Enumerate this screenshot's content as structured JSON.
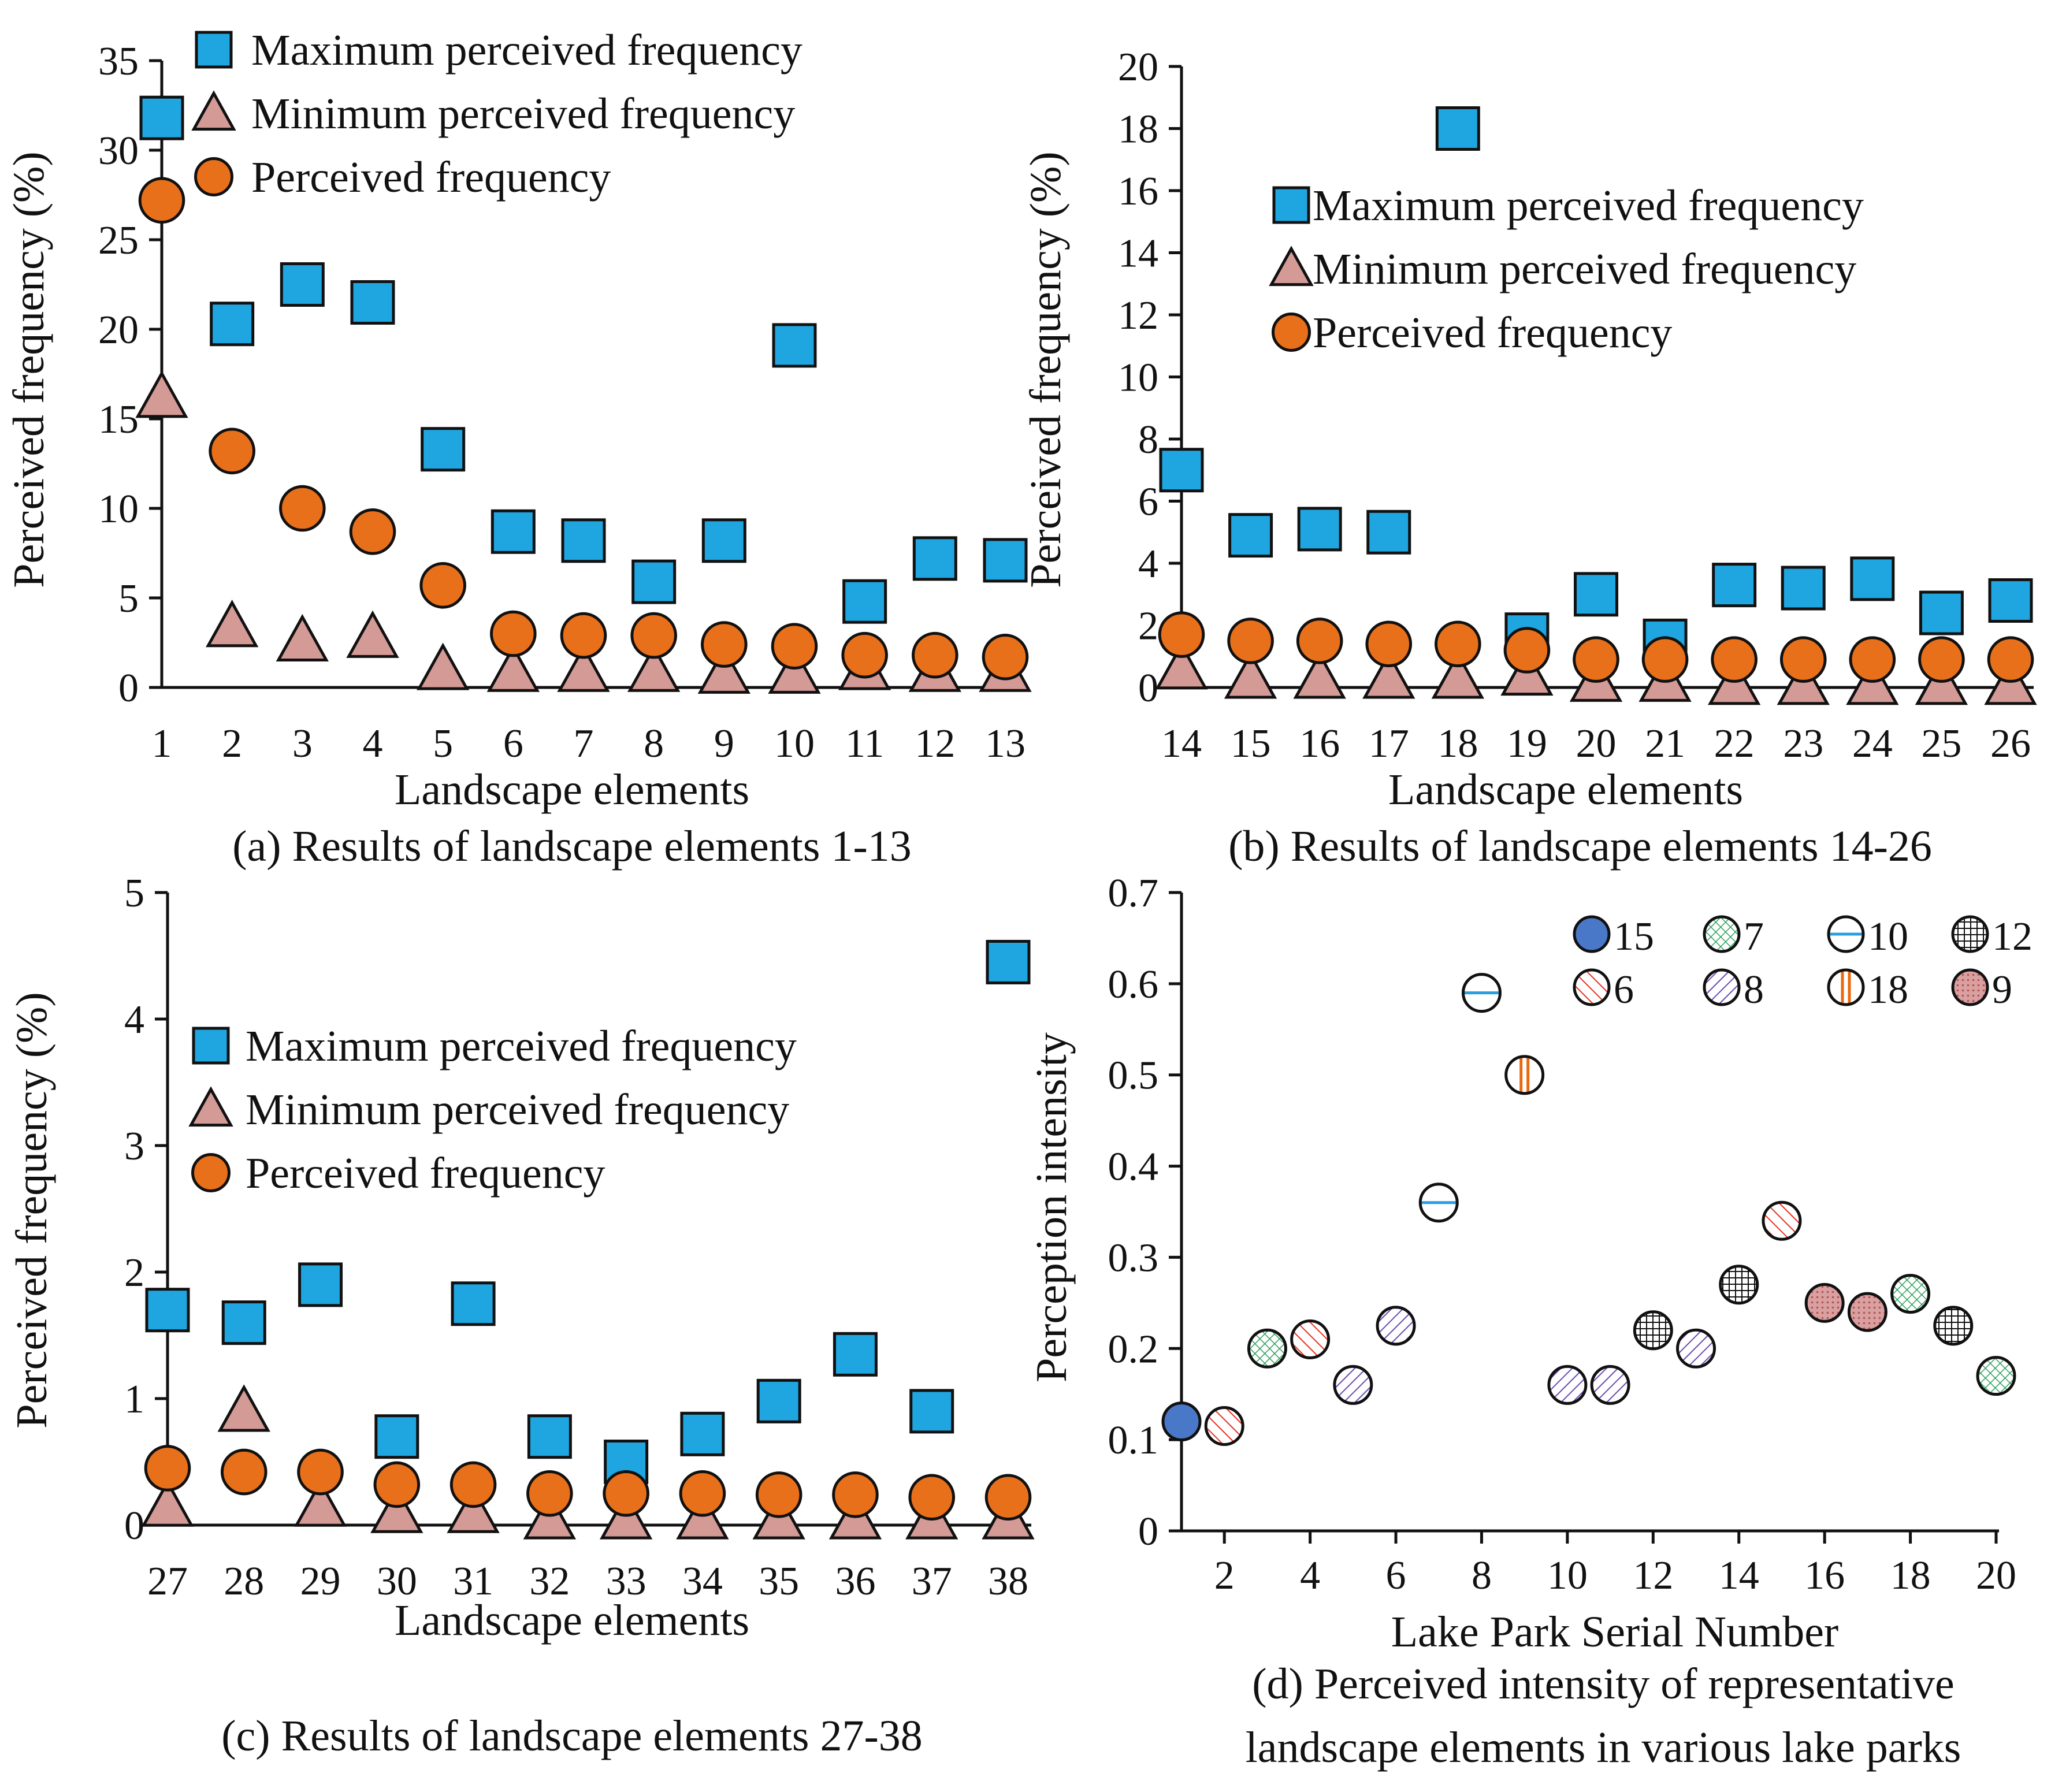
{
  "chart_data": [
    {
      "id": "a",
      "type": "scatter",
      "caption": "(a) Results of landscape elements 1-13",
      "xlabel": "Landscape elements",
      "ylabel": "Perceived frequency (%)",
      "ylim": [
        0,
        35
      ],
      "yticks": [
        0,
        5,
        10,
        15,
        20,
        25,
        30,
        35
      ],
      "categories": [
        "1",
        "2",
        "3",
        "4",
        "5",
        "6",
        "7",
        "8",
        "9",
        "10",
        "11",
        "12",
        "13"
      ],
      "legend": [
        "Maximum perceived frequency",
        "Minimum perceived frequency",
        "Perceived frequency"
      ],
      "legend_position": "top",
      "series": [
        {
          "name": "Maximum perceived frequency",
          "marker": "square",
          "values": [
            31.8,
            20.3,
            22.5,
            21.5,
            13.3,
            8.7,
            8.2,
            5.9,
            8.2,
            19.1,
            4.8,
            7.2,
            7.1
          ]
        },
        {
          "name": "Minimum perceived frequency",
          "marker": "triangle",
          "values": [
            16.2,
            3.4,
            2.6,
            2.8,
            1.0,
            0.9,
            0.9,
            0.9,
            0.8,
            0.8,
            1.0,
            0.9,
            0.9
          ]
        },
        {
          "name": "Perceived frequency",
          "marker": "circle",
          "values": [
            27.2,
            13.2,
            10.0,
            8.7,
            5.7,
            3.0,
            2.9,
            2.9,
            2.4,
            2.3,
            1.8,
            1.8,
            1.7
          ]
        }
      ]
    },
    {
      "id": "b",
      "type": "scatter",
      "caption": "(b) Results of landscape elements 14-26",
      "xlabel": "Landscape elements",
      "ylabel": "Perceived frequency (%)",
      "ylim": [
        0,
        20
      ],
      "yticks": [
        0,
        2,
        4,
        6,
        8,
        10,
        12,
        14,
        16,
        18,
        20
      ],
      "categories": [
        "14",
        "15",
        "16",
        "17",
        "18",
        "19",
        "20",
        "21",
        "22",
        "23",
        "24",
        "25",
        "26"
      ],
      "legend": [
        "Maximum perceived frequency",
        "Minimum perceived frequency",
        "Perceived frequency"
      ],
      "legend_position": "right",
      "series": [
        {
          "name": "Maximum perceived frequency",
          "marker": "square",
          "values": [
            7.0,
            4.9,
            5.1,
            5.0,
            18.0,
            1.7,
            3.0,
            1.5,
            3.3,
            3.2,
            3.5,
            2.4,
            2.8
          ]
        },
        {
          "name": "Minimum perceived frequency",
          "marker": "triangle",
          "values": [
            0.6,
            0.3,
            0.3,
            0.3,
            0.3,
            0.4,
            0.2,
            0.2,
            0.1,
            0.1,
            0.1,
            0.1,
            0.1
          ]
        },
        {
          "name": "Perceived frequency",
          "marker": "circle",
          "values": [
            1.7,
            1.5,
            1.5,
            1.4,
            1.4,
            1.2,
            0.9,
            0.9,
            0.9,
            0.9,
            0.9,
            0.9,
            0.9
          ]
        }
      ]
    },
    {
      "id": "c",
      "type": "scatter",
      "caption": "(c) Results of landscape elements 27-38",
      "xlabel": "Landscape elements",
      "ylabel": "Perceived frequency (%)",
      "ylim": [
        0,
        5
      ],
      "yticks": [
        0,
        1,
        2,
        3,
        4,
        5
      ],
      "categories": [
        "27",
        "28",
        "29",
        "30",
        "31",
        "32",
        "33",
        "34",
        "35",
        "36",
        "37",
        "38"
      ],
      "legend": [
        "Maximum perceived frequency",
        "Minimum perceived frequency",
        "Perceived frequency"
      ],
      "legend_position": "left",
      "series": [
        {
          "name": "Maximum perceived frequency",
          "marker": "square",
          "values": [
            1.7,
            1.6,
            1.9,
            0.7,
            1.75,
            0.7,
            0.5,
            0.72,
            0.98,
            1.35,
            0.9,
            4.45
          ]
        },
        {
          "name": "Minimum perceived frequency",
          "marker": "triangle",
          "values": [
            0.15,
            0.9,
            0.15,
            0.1,
            0.1,
            0.05,
            0.05,
            0.05,
            0.05,
            0.05,
            0.05,
            0.05
          ]
        },
        {
          "name": "Perceived frequency",
          "marker": "circle",
          "values": [
            0.45,
            0.42,
            0.42,
            0.32,
            0.32,
            0.25,
            0.25,
            0.25,
            0.24,
            0.24,
            0.22,
            0.22
          ]
        }
      ]
    },
    {
      "id": "d",
      "type": "scatter",
      "caption": [
        "(d) Perceived intensity of representative",
        "landscape elements in various lake parks"
      ],
      "xlabel": "Lake Park Serial Number",
      "ylabel": "Perception intensity",
      "xlim": [
        1,
        20
      ],
      "ylim": [
        0,
        0.7
      ],
      "xticks": [
        2,
        4,
        6,
        8,
        10,
        12,
        14,
        16,
        18,
        20
      ],
      "yticks": [
        0,
        0.1,
        0.2,
        0.3,
        0.4,
        0.5,
        0.6,
        0.7
      ],
      "legend_position": "top-right",
      "legend": [
        {
          "label": "15",
          "pattern": "solid-blue"
        },
        {
          "label": "7",
          "pattern": "green-crosshatch"
        },
        {
          "label": "10",
          "pattern": "blue-horizontal"
        },
        {
          "label": "12",
          "pattern": "black-grid"
        },
        {
          "label": "6",
          "pattern": "red-diagonal"
        },
        {
          "label": "8",
          "pattern": "purple-diagonal"
        },
        {
          "label": "18",
          "pattern": "orange-vertical"
        },
        {
          "label": "9",
          "pattern": "pink-dots"
        }
      ],
      "points": [
        {
          "x": 1,
          "y": 0.12,
          "element": "15"
        },
        {
          "x": 2,
          "y": 0.115,
          "element": "6"
        },
        {
          "x": 3,
          "y": 0.2,
          "element": "7"
        },
        {
          "x": 4,
          "y": 0.21,
          "element": "6"
        },
        {
          "x": 5,
          "y": 0.16,
          "element": "8"
        },
        {
          "x": 6,
          "y": 0.225,
          "element": "8"
        },
        {
          "x": 7,
          "y": 0.36,
          "element": "10"
        },
        {
          "x": 8,
          "y": 0.59,
          "element": "10"
        },
        {
          "x": 9,
          "y": 0.5,
          "element": "18"
        },
        {
          "x": 10,
          "y": 0.16,
          "element": "8"
        },
        {
          "x": 11,
          "y": 0.16,
          "element": "8"
        },
        {
          "x": 12,
          "y": 0.22,
          "element": "12"
        },
        {
          "x": 13,
          "y": 0.2,
          "element": "8"
        },
        {
          "x": 14,
          "y": 0.27,
          "element": "12"
        },
        {
          "x": 15,
          "y": 0.34,
          "element": "6"
        },
        {
          "x": 16,
          "y": 0.25,
          "element": "9"
        },
        {
          "x": 17,
          "y": 0.24,
          "element": "9"
        },
        {
          "x": 18,
          "y": 0.26,
          "element": "7"
        },
        {
          "x": 19,
          "y": 0.225,
          "element": "12"
        },
        {
          "x": 20,
          "y": 0.17,
          "element": "7"
        }
      ]
    }
  ],
  "colors": {
    "square": "#1fa6e0",
    "triangle": "#d49a96",
    "circle": "#e8701a",
    "pattern_blue_fill": "#4a78c8",
    "pattern_green": "#2ca05a",
    "pattern_blue_line": "#2a9de0",
    "pattern_red": "#e83020",
    "pattern_purple": "#6a4ab0",
    "pattern_orange": "#e86a10",
    "pattern_pink": "#d8a0a0",
    "pattern_pink_dot": "#b85050"
  }
}
